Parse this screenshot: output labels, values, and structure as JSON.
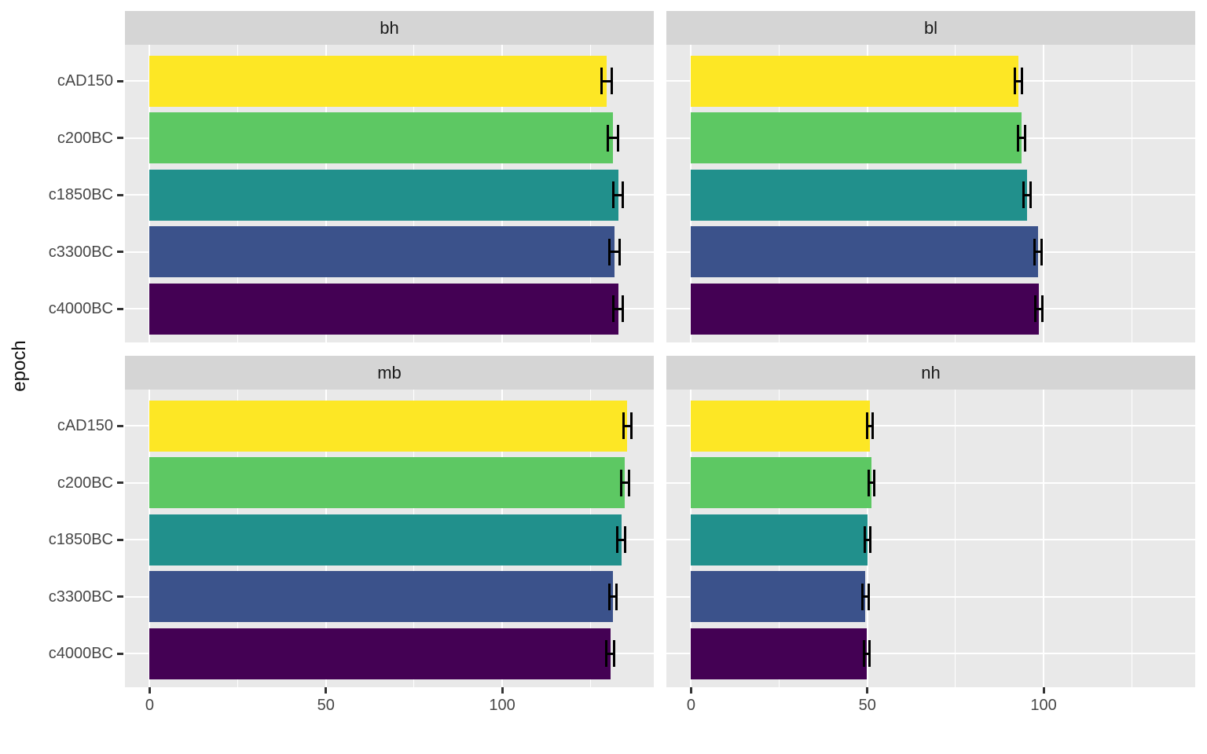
{
  "chart_data": {
    "type": "bar",
    "orientation": "horizontal",
    "title": "",
    "xlabel": "",
    "ylabel": "epoch",
    "legend": "none",
    "grid": true,
    "xlim": [
      -7,
      143
    ],
    "x_ticks": [
      0,
      50,
      100
    ],
    "x_tick_labels": [
      "0",
      "50",
      "100"
    ],
    "x_minor_ticks": [
      25,
      75,
      125
    ],
    "categories": [
      "cAD150",
      "c200BC",
      "c1850BC",
      "c3300BC",
      "c4000BC"
    ],
    "bar_colors": [
      "#FDE725",
      "#5DC863",
      "#21908C",
      "#3B528B",
      "#440154"
    ],
    "facets": [
      {
        "label": "bh",
        "values": [
          129.6,
          131.4,
          132.9,
          131.9,
          132.9
        ],
        "errors": [
          1.4,
          1.4,
          1.4,
          1.4,
          1.4
        ]
      },
      {
        "label": "bl",
        "values": [
          92.9,
          93.8,
          95.4,
          98.4,
          98.6
        ],
        "errors": [
          1.0,
          1.0,
          1.0,
          1.0,
          1.0
        ]
      },
      {
        "label": "mb",
        "values": [
          135.5,
          134.8,
          133.8,
          131.4,
          130.7
        ],
        "errors": [
          1.1,
          1.1,
          1.1,
          1.1,
          1.1
        ]
      },
      {
        "label": "nh",
        "values": [
          50.8,
          51.2,
          50.1,
          49.5,
          49.9
        ],
        "errors": [
          0.8,
          0.8,
          0.8,
          0.8,
          0.8
        ]
      }
    ],
    "colors": {
      "background": "#FFFFFF",
      "panel_bg": "#E9E9E9",
      "strip_bg": "#D5D5D5",
      "gridline": "#FFFFFF",
      "axis_text": "#474747",
      "strip_text": "#1A1A1A",
      "tick_mark": "#333333",
      "error_bar": "#000000"
    }
  }
}
